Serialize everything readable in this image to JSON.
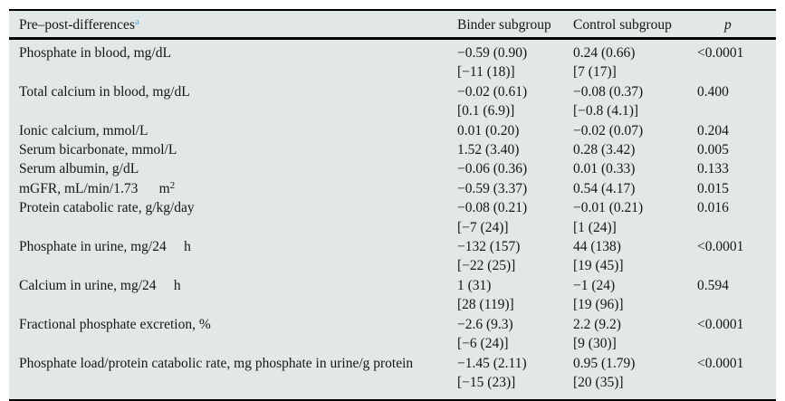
{
  "table": {
    "background_color": "#e2e7e8",
    "rule_color": "#000000",
    "footnote_marker_color": "#5ba9d4",
    "header": {
      "col1": "Pre–post-differences",
      "col1_sup": "a",
      "col2": "Binder subgroup",
      "col3": "Control subgroup",
      "col4": "p"
    },
    "rows": [
      {
        "label": "Phosphate in blood, mg/dL",
        "binder": [
          "−0.59 (0.90)",
          "[−11 (18)]"
        ],
        "control": [
          "0.24 (0.66)",
          "[7 (17)]"
        ],
        "p": "<0.0001"
      },
      {
        "label": "Total calcium in blood, mg/dL",
        "binder": [
          "−0.02 (0.61)",
          "[0.1 (6.9)]"
        ],
        "control": [
          "−0.08 (0.37)",
          "[−0.8 (4.1)]"
        ],
        "p": "0.400"
      },
      {
        "label": "Ionic calcium, mmol/L",
        "binder": [
          "0.01 (0.20)"
        ],
        "control": [
          "−0.02 (0.07)"
        ],
        "p": "0.204"
      },
      {
        "label": "Serum bicarbonate, mmol/L",
        "binder": [
          "1.52 (3.40)"
        ],
        "control": [
          "0.28 (3.42)"
        ],
        "p": "0.005"
      },
      {
        "label": "Serum albumin, g/dL",
        "binder": [
          "−0.06 (0.36)"
        ],
        "control": [
          "0.01 (0.33)"
        ],
        "p": "0.133"
      },
      {
        "label": "mGFR, mL/min/1.73      m",
        "label_sup": "2",
        "binder": [
          "−0.59 (3.37)"
        ],
        "control": [
          "0.54 (4.17)"
        ],
        "p": "0.015"
      },
      {
        "label": "Protein catabolic rate, g/kg/day",
        "binder": [
          "−0.08 (0.21)",
          "[−7 (24)]"
        ],
        "control": [
          "−0.01 (0.21)",
          "[1 (24)]"
        ],
        "p": "0.016"
      },
      {
        "label": "Phosphate in urine, mg/24     h",
        "binder": [
          "−132 (157)",
          "[−22 (25)]"
        ],
        "control": [
          "44 (138)",
          "[19 (45)]"
        ],
        "p": "<0.0001"
      },
      {
        "label": "Calcium in urine, mg/24     h",
        "binder": [
          "1 (31)",
          "[28 (119)]"
        ],
        "control": [
          "−1 (24)",
          "[19 (96)]"
        ],
        "p": "0.594"
      },
      {
        "label": "Fractional phosphate excretion, %",
        "binder": [
          "−2.6 (9.3)",
          "[−6 (24)]"
        ],
        "control": [
          "2.2 (9.2)",
          "[9 (30)]"
        ],
        "p": "<0.0001"
      },
      {
        "label": "Phosphate load/protein catabolic rate, mg phosphate in urine/g protein",
        "binder": [
          "−1.45 (2.11)",
          "[−15 (23)]"
        ],
        "control": [
          "0.95 (1.79)",
          "[20 (35)]"
        ],
        "p": "<0.0001"
      }
    ]
  }
}
